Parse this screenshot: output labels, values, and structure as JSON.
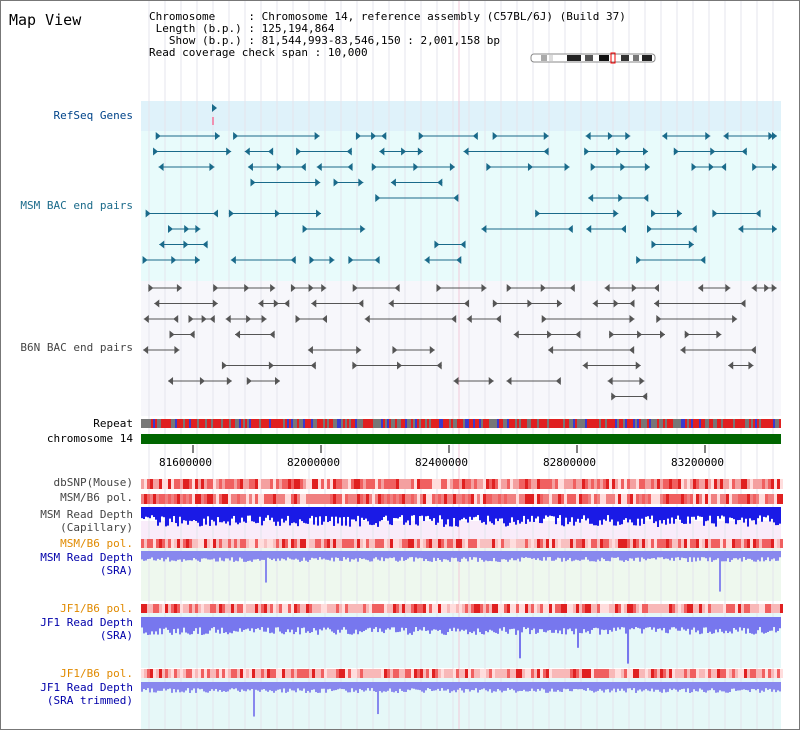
{
  "title": "Map View",
  "info": {
    "chromosome_label": "Chromosome",
    "chromosome_value": "Chromosome 14, reference assembly (C57BL/6J) (Build 37)",
    "length_label": "Length (b.p.)",
    "length_value": "125,194,864",
    "show_label": "Show (b.p.)",
    "show_value": "81,544,993-83,546,150 : 2,001,158 bp",
    "coverage_label": "Read coverage check span",
    "coverage_value": "10,000"
  },
  "tracks": {
    "refseq": "RefSeq Genes",
    "msm_bac": "MSM BAC end pairs",
    "b6n_bac": "B6N BAC end pairs",
    "repeat": "Repeat",
    "chromosome": "chromosome 14",
    "dbsnp": "dbSNP(Mouse)",
    "msm_b6_pol": "MSM/B6 pol.",
    "msm_depth_cap_1": "MSM Read Depth",
    "msm_depth_cap_2": "(Capillary)",
    "msm_b6_pol_2": "MSM/B6 pol.",
    "msm_depth_sra_1": "MSM Read Depth",
    "msm_depth_sra_2": "(SRA)",
    "jf1_b6_pol": "JF1/B6 pol.",
    "jf1_depth_sra_1": "JF1 Read Depth",
    "jf1_depth_sra_2": "(SRA)",
    "jf1_b6_pol_2": "JF1/B6 pol.",
    "jf1_depth_trim_1": "JF1 Read Depth",
    "jf1_depth_trim_2": "(SRA trimmed)"
  },
  "ruler": {
    "ticks": [
      "81600000",
      "82000000",
      "82400000",
      "82800000",
      "83200000"
    ]
  },
  "colors": {
    "refseq": "#1a6a8a",
    "msm": "#2a7a9a",
    "b6n": "#555555",
    "depth_blue": "#1a1ae6",
    "pol_orange": "#e08a00",
    "chromosome_green": "#006600"
  }
}
